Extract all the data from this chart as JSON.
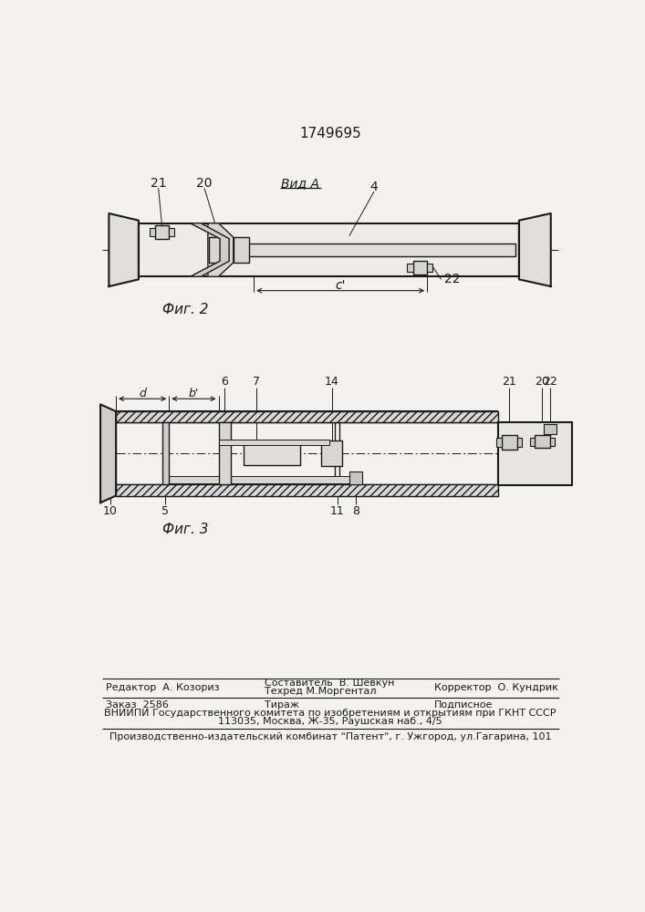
{
  "patent_number": "1749695",
  "fig2_label": "Фиг. 2",
  "fig3_label": "Фиг. 3",
  "vid_a_label": "Вид A",
  "background_color": "#f4f2ee",
  "line_color": "#1a1a1a",
  "text_color": "#1a1a1a",
  "footer_line1_left": "Редактор  А. Козориз",
  "footer_sestavitel": "Составитель  В. Шевкун",
  "footer_tekhred": "Техред М.Моргентал",
  "footer_korrektor": "Корректор  О. Кундрик",
  "footer_zakaz": "Заказ  2586",
  "footer_tirazh": "Тираж",
  "footer_podpisnoe": "Подписное",
  "footer_vniipи": "ВНИИПИ Государственного комитета по изобретениям и открытиям при ГКНТ СССР",
  "footer_addr": "113035, Москва, Ж-35, Раушская наб., 4/5",
  "footer_patent": "Производственно-издательский комбинат \"Патент\", г. Ужгород, ул.Гагарина, 101"
}
